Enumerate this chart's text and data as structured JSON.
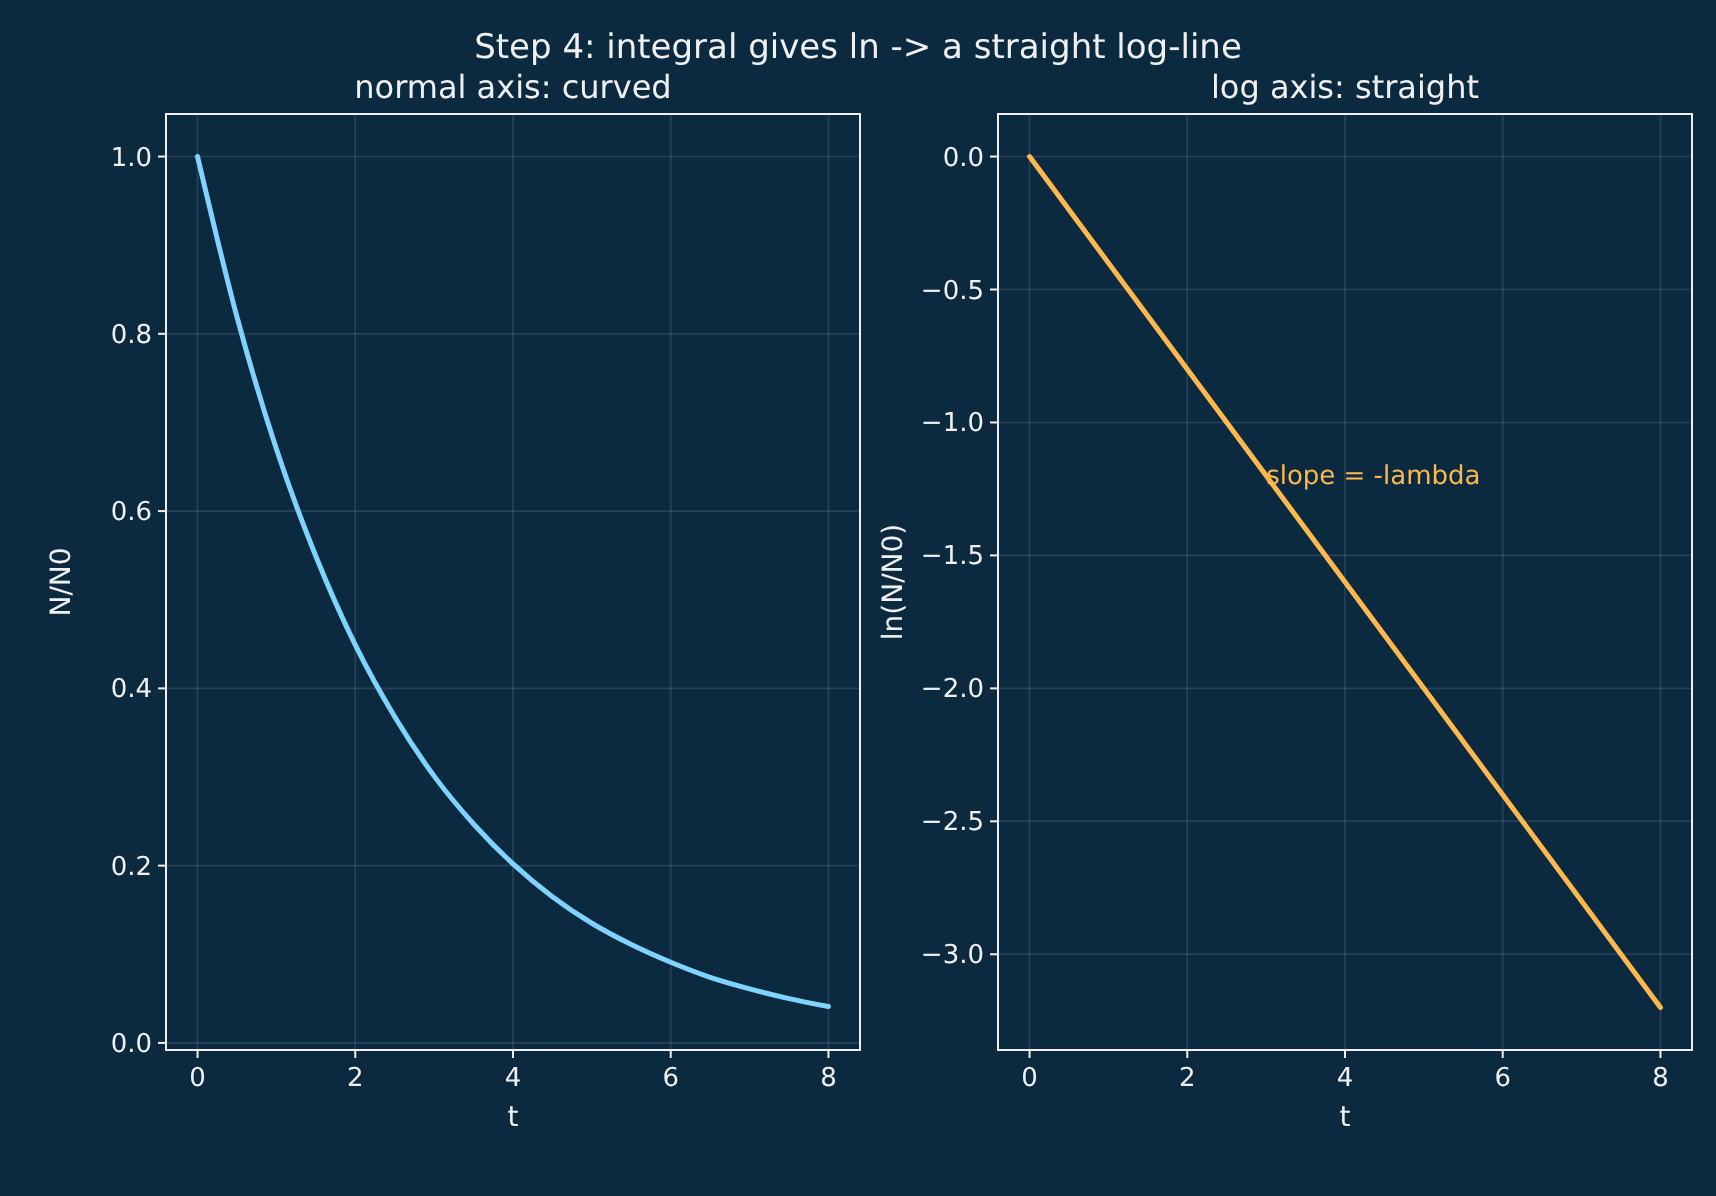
{
  "chart_data": [
    {
      "type": "line",
      "title": "Step 4: integral gives ln -> a straight log-line",
      "subtitle": "normal axis: curved",
      "xlabel": "t",
      "ylabel": "N/N0",
      "x": [
        0,
        0.5,
        1,
        1.5,
        2,
        2.5,
        3,
        3.5,
        4,
        4.5,
        5,
        5.5,
        6,
        6.5,
        7,
        7.5,
        8
      ],
      "series": [
        {
          "color": "#7fd3ff",
          "values": [
            1,
            0.819,
            0.67,
            0.549,
            0.449,
            0.368,
            0.301,
            0.247,
            0.202,
            0.165,
            0.135,
            0.111,
            0.091,
            0.074,
            0.061,
            0.05,
            0.041
          ]
        }
      ],
      "xlim": [
        -0.4,
        8.4
      ],
      "xticks": [
        0,
        2,
        4,
        6,
        8
      ],
      "ylim": [
        -0.008,
        1.048
      ],
      "yticks": [
        {
          "value": 0,
          "label": "0.0"
        },
        {
          "value": 0.2,
          "label": "0.2"
        },
        {
          "value": 0.4,
          "label": "0.4"
        },
        {
          "value": 0.6,
          "label": "0.6"
        },
        {
          "value": 0.8,
          "label": "0.8"
        },
        {
          "value": 1,
          "label": "1.0"
        }
      ],
      "grid": true
    },
    {
      "type": "line",
      "title": "log axis: straight",
      "xlabel": "t",
      "ylabel": "ln(N/N0)",
      "x": [
        0,
        8
      ],
      "series": [
        {
          "color": "#ffb84d",
          "values": [
            0,
            -3.2
          ]
        }
      ],
      "annotations": [
        {
          "text": "slope = -lambda",
          "x": 3,
          "y": -1.2
        }
      ],
      "xlim": [
        -0.4,
        8.4
      ],
      "xticks": [
        0,
        2,
        4,
        6,
        8
      ],
      "ylim": [
        -3.36,
        0.16
      ],
      "yticks": [
        {
          "value": 0,
          "label": "0.0"
        },
        {
          "value": -0.5,
          "label": "−0.5"
        },
        {
          "value": -1,
          "label": "−1.0"
        },
        {
          "value": -1.5,
          "label": "−1.5"
        },
        {
          "value": -2,
          "label": "−2.0"
        },
        {
          "value": -2.5,
          "label": "−2.5"
        },
        {
          "value": -3,
          "label": "−3.0"
        }
      ],
      "grid": true
    }
  ]
}
